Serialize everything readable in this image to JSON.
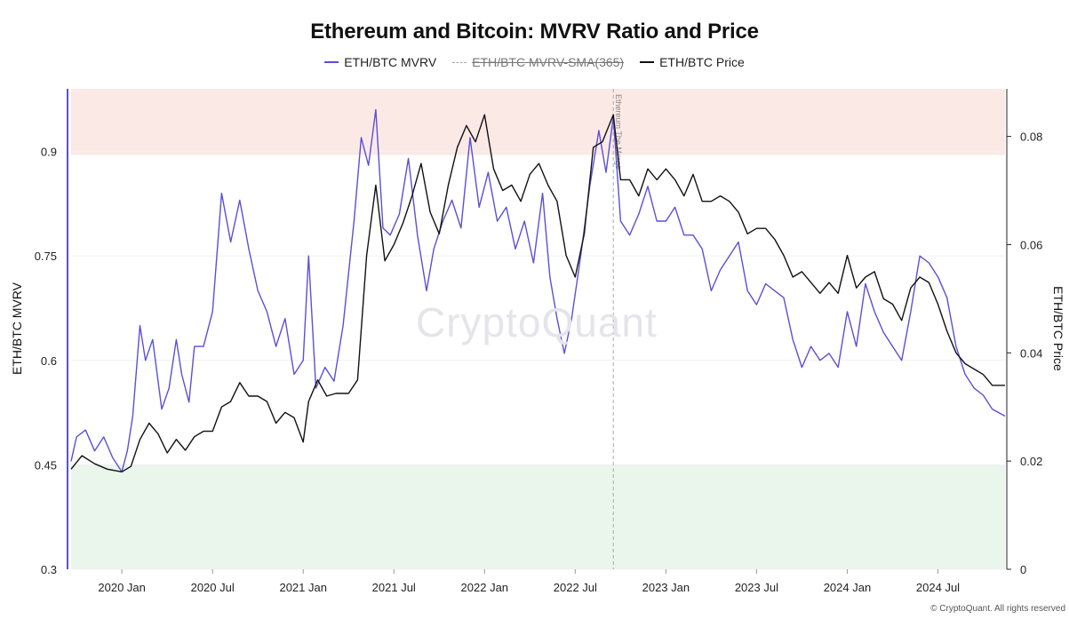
{
  "chart_data": {
    "type": "line",
    "title": "Ethereum and Bitcoin: MVRV Ratio and Price",
    "legend": [
      {
        "name": "ETH/BTC MVRV",
        "color": "#5b4fd8",
        "visible": true
      },
      {
        "name": "ETH/BTC MVRV-SMA(365)",
        "color": "#aaaaaa",
        "visible": false
      },
      {
        "name": "ETH/BTC Price",
        "color": "#111111",
        "visible": true
      }
    ],
    "ylabel_left": "ETH/BTC MVRV",
    "ylabel_right": "ETH/BTC Price",
    "ylim_left": [
      0.3,
      0.99
    ],
    "ylim_right": [
      0,
      0.0888
    ],
    "yticks_left": [
      "0.3",
      "0.45",
      "0.6",
      "0.75",
      "0.9"
    ],
    "yticks_left_values": [
      0.3,
      0.45,
      0.6,
      0.75,
      0.9
    ],
    "yticks_right": [
      "0",
      "0.02",
      "0.04",
      "0.06",
      "0.08"
    ],
    "yticks_right_values": [
      0,
      0.02,
      0.04,
      0.06,
      0.08
    ],
    "xlim": [
      2019.72,
      2024.87
    ],
    "xticks": [
      "2020 Jan",
      "2020 Jul",
      "2021 Jan",
      "2021 Jul",
      "2022 Jan",
      "2022 Jul",
      "2023 Jan",
      "2023 Jul",
      "2024 Jan",
      "2024 Jul"
    ],
    "xticks_values": [
      2020.0,
      2020.5,
      2021.0,
      2021.5,
      2022.0,
      2022.5,
      2023.0,
      2023.5,
      2024.0,
      2024.5
    ],
    "bands": [
      {
        "name": "overvalued-zone",
        "from": 0.895,
        "to": 0.99,
        "color": "#fbe9e6"
      },
      {
        "name": "undervalued-zone",
        "from": 0.3,
        "to": 0.45,
        "color": "#eaf5ec"
      }
    ],
    "annotations": [
      {
        "label": "Ethereum The Merge",
        "x": 2022.71
      }
    ],
    "series": [
      {
        "name": "ETH/BTC MVRV",
        "axis": "left",
        "points": [
          [
            2019.72,
            0.455
          ],
          [
            2019.75,
            0.49
          ],
          [
            2019.8,
            0.5
          ],
          [
            2019.85,
            0.47
          ],
          [
            2019.9,
            0.49
          ],
          [
            2019.95,
            0.46
          ],
          [
            2020.0,
            0.44
          ],
          [
            2020.03,
            0.47
          ],
          [
            2020.06,
            0.52
          ],
          [
            2020.1,
            0.65
          ],
          [
            2020.13,
            0.6
          ],
          [
            2020.17,
            0.63
          ],
          [
            2020.22,
            0.53
          ],
          [
            2020.26,
            0.56
          ],
          [
            2020.3,
            0.63
          ],
          [
            2020.33,
            0.58
          ],
          [
            2020.37,
            0.54
          ],
          [
            2020.4,
            0.62
          ],
          [
            2020.45,
            0.62
          ],
          [
            2020.5,
            0.67
          ],
          [
            2020.55,
            0.84
          ],
          [
            2020.6,
            0.77
          ],
          [
            2020.65,
            0.83
          ],
          [
            2020.7,
            0.76
          ],
          [
            2020.75,
            0.7
          ],
          [
            2020.8,
            0.67
          ],
          [
            2020.85,
            0.62
          ],
          [
            2020.9,
            0.66
          ],
          [
            2020.95,
            0.58
          ],
          [
            2021.0,
            0.6
          ],
          [
            2021.03,
            0.75
          ],
          [
            2021.07,
            0.56
          ],
          [
            2021.12,
            0.59
          ],
          [
            2021.17,
            0.57
          ],
          [
            2021.22,
            0.65
          ],
          [
            2021.28,
            0.8
          ],
          [
            2021.32,
            0.92
          ],
          [
            2021.36,
            0.88
          ],
          [
            2021.4,
            0.96
          ],
          [
            2021.44,
            0.79
          ],
          [
            2021.48,
            0.78
          ],
          [
            2021.53,
            0.81
          ],
          [
            2021.58,
            0.89
          ],
          [
            2021.63,
            0.78
          ],
          [
            2021.68,
            0.7
          ],
          [
            2021.72,
            0.76
          ],
          [
            2021.77,
            0.8
          ],
          [
            2021.82,
            0.83
          ],
          [
            2021.87,
            0.79
          ],
          [
            2021.92,
            0.92
          ],
          [
            2021.97,
            0.82
          ],
          [
            2022.02,
            0.87
          ],
          [
            2022.07,
            0.8
          ],
          [
            2022.12,
            0.82
          ],
          [
            2022.17,
            0.76
          ],
          [
            2022.22,
            0.8
          ],
          [
            2022.27,
            0.74
          ],
          [
            2022.32,
            0.84
          ],
          [
            2022.36,
            0.72
          ],
          [
            2022.4,
            0.66
          ],
          [
            2022.44,
            0.61
          ],
          [
            2022.48,
            0.66
          ],
          [
            2022.53,
            0.75
          ],
          [
            2022.58,
            0.85
          ],
          [
            2022.63,
            0.93
          ],
          [
            2022.67,
            0.87
          ],
          [
            2022.71,
            0.95
          ],
          [
            2022.75,
            0.8
          ],
          [
            2022.8,
            0.78
          ],
          [
            2022.85,
            0.81
          ],
          [
            2022.9,
            0.85
          ],
          [
            2022.95,
            0.8
          ],
          [
            2023.0,
            0.8
          ],
          [
            2023.05,
            0.82
          ],
          [
            2023.1,
            0.78
          ],
          [
            2023.15,
            0.78
          ],
          [
            2023.2,
            0.76
          ],
          [
            2023.25,
            0.7
          ],
          [
            2023.3,
            0.73
          ],
          [
            2023.35,
            0.75
          ],
          [
            2023.4,
            0.77
          ],
          [
            2023.45,
            0.7
          ],
          [
            2023.5,
            0.68
          ],
          [
            2023.55,
            0.71
          ],
          [
            2023.6,
            0.7
          ],
          [
            2023.65,
            0.69
          ],
          [
            2023.7,
            0.63
          ],
          [
            2023.75,
            0.59
          ],
          [
            2023.8,
            0.62
          ],
          [
            2023.85,
            0.6
          ],
          [
            2023.9,
            0.61
          ],
          [
            2023.95,
            0.59
          ],
          [
            2024.0,
            0.67
          ],
          [
            2024.05,
            0.62
          ],
          [
            2024.1,
            0.71
          ],
          [
            2024.15,
            0.67
          ],
          [
            2024.2,
            0.64
          ],
          [
            2024.25,
            0.62
          ],
          [
            2024.3,
            0.6
          ],
          [
            2024.35,
            0.67
          ],
          [
            2024.4,
            0.75
          ],
          [
            2024.45,
            0.74
          ],
          [
            2024.5,
            0.72
          ],
          [
            2024.55,
            0.69
          ],
          [
            2024.6,
            0.62
          ],
          [
            2024.65,
            0.58
          ],
          [
            2024.7,
            0.56
          ],
          [
            2024.75,
            0.55
          ],
          [
            2024.8,
            0.53
          ],
          [
            2024.87,
            0.52
          ]
        ]
      },
      {
        "name": "ETH/BTC Price",
        "axis": "right",
        "points": [
          [
            2019.72,
            0.0185
          ],
          [
            2019.78,
            0.021
          ],
          [
            2019.85,
            0.0195
          ],
          [
            2019.92,
            0.0185
          ],
          [
            2020.0,
            0.018
          ],
          [
            2020.05,
            0.019
          ],
          [
            2020.1,
            0.024
          ],
          [
            2020.15,
            0.027
          ],
          [
            2020.2,
            0.025
          ],
          [
            2020.25,
            0.0215
          ],
          [
            2020.3,
            0.024
          ],
          [
            2020.35,
            0.022
          ],
          [
            2020.4,
            0.0245
          ],
          [
            2020.45,
            0.0255
          ],
          [
            2020.5,
            0.0255
          ],
          [
            2020.55,
            0.03
          ],
          [
            2020.6,
            0.031
          ],
          [
            2020.65,
            0.0345
          ],
          [
            2020.7,
            0.032
          ],
          [
            2020.75,
            0.032
          ],
          [
            2020.8,
            0.031
          ],
          [
            2020.85,
            0.027
          ],
          [
            2020.9,
            0.029
          ],
          [
            2020.95,
            0.028
          ],
          [
            2021.0,
            0.0235
          ],
          [
            2021.03,
            0.031
          ],
          [
            2021.08,
            0.035
          ],
          [
            2021.13,
            0.032
          ],
          [
            2021.18,
            0.0325
          ],
          [
            2021.25,
            0.0325
          ],
          [
            2021.3,
            0.035
          ],
          [
            2021.35,
            0.058
          ],
          [
            2021.4,
            0.071
          ],
          [
            2021.45,
            0.057
          ],
          [
            2021.5,
            0.06
          ],
          [
            2021.55,
            0.064
          ],
          [
            2021.6,
            0.069
          ],
          [
            2021.65,
            0.075
          ],
          [
            2021.7,
            0.066
          ],
          [
            2021.75,
            0.062
          ],
          [
            2021.8,
            0.071
          ],
          [
            2021.85,
            0.078
          ],
          [
            2021.9,
            0.082
          ],
          [
            2021.95,
            0.079
          ],
          [
            2022.0,
            0.084
          ],
          [
            2022.05,
            0.074
          ],
          [
            2022.1,
            0.07
          ],
          [
            2022.15,
            0.071
          ],
          [
            2022.2,
            0.068
          ],
          [
            2022.25,
            0.073
          ],
          [
            2022.3,
            0.075
          ],
          [
            2022.35,
            0.071
          ],
          [
            2022.4,
            0.068
          ],
          [
            2022.45,
            0.058
          ],
          [
            2022.5,
            0.054
          ],
          [
            2022.55,
            0.062
          ],
          [
            2022.6,
            0.078
          ],
          [
            2022.65,
            0.079
          ],
          [
            2022.71,
            0.084
          ],
          [
            2022.75,
            0.072
          ],
          [
            2022.8,
            0.072
          ],
          [
            2022.85,
            0.069
          ],
          [
            2022.9,
            0.074
          ],
          [
            2022.95,
            0.072
          ],
          [
            2023.0,
            0.074
          ],
          [
            2023.05,
            0.072
          ],
          [
            2023.1,
            0.069
          ],
          [
            2023.15,
            0.073
          ],
          [
            2023.2,
            0.068
          ],
          [
            2023.25,
            0.068
          ],
          [
            2023.3,
            0.069
          ],
          [
            2023.35,
            0.068
          ],
          [
            2023.4,
            0.066
          ],
          [
            2023.45,
            0.062
          ],
          [
            2023.5,
            0.063
          ],
          [
            2023.55,
            0.063
          ],
          [
            2023.6,
            0.061
          ],
          [
            2023.65,
            0.058
          ],
          [
            2023.7,
            0.054
          ],
          [
            2023.75,
            0.055
          ],
          [
            2023.8,
            0.053
          ],
          [
            2023.85,
            0.051
          ],
          [
            2023.9,
            0.053
          ],
          [
            2023.95,
            0.051
          ],
          [
            2024.0,
            0.058
          ],
          [
            2024.05,
            0.052
          ],
          [
            2024.1,
            0.054
          ],
          [
            2024.15,
            0.055
          ],
          [
            2024.2,
            0.05
          ],
          [
            2024.25,
            0.049
          ],
          [
            2024.3,
            0.046
          ],
          [
            2024.35,
            0.052
          ],
          [
            2024.4,
            0.054
          ],
          [
            2024.45,
            0.053
          ],
          [
            2024.5,
            0.049
          ],
          [
            2024.55,
            0.044
          ],
          [
            2024.6,
            0.04
          ],
          [
            2024.65,
            0.038
          ],
          [
            2024.7,
            0.037
          ],
          [
            2024.75,
            0.036
          ],
          [
            2024.8,
            0.034
          ],
          [
            2024.87,
            0.034
          ]
        ]
      }
    ]
  },
  "watermark": "CryptoQuant",
  "copyright": "© CryptoQuant. All rights reserved"
}
